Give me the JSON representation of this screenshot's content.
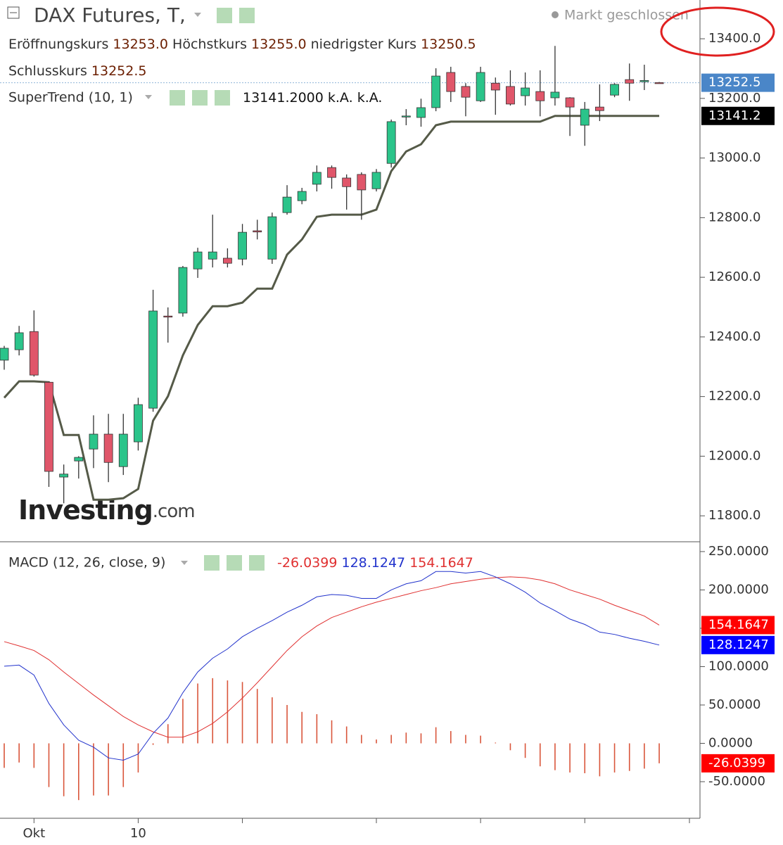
{
  "header": {
    "title": "DAX Futures, T,",
    "status": "Markt geschlossen",
    "open_label": "Eröffnungskurs",
    "open": "13253.0",
    "high_label": "Höchstkurs",
    "high": "13255.0",
    "low_label": "niedrigster Kurs",
    "low": "13250.5",
    "close_label": "Schlusskurs",
    "close": "13252.5",
    "watermark": "Investing",
    "watermark_suffix": ".com"
  },
  "chart_data": [
    {
      "type": "candlestick",
      "legend_label": "SuperTrend (10, 1)",
      "legend_values": [
        "13141.2000",
        "k.A.",
        "k.A."
      ],
      "categories": [
        null,
        null,
        "Okt",
        null,
        null,
        null,
        null,
        null,
        null,
        "10",
        null,
        null,
        null,
        null,
        null,
        null,
        null,
        null,
        null,
        null,
        null,
        null,
        null,
        null,
        null,
        null,
        null,
        null,
        null,
        null,
        null,
        null,
        null,
        null,
        null,
        null,
        null,
        null,
        null,
        null,
        null,
        null,
        null,
        null,
        null
      ],
      "open": [
        12322,
        12357,
        12418,
        12248,
        11930,
        11984,
        12024,
        12074,
        11965,
        12048,
        12161,
        12470,
        12480,
        12628,
        12661,
        12664,
        12661,
        12756,
        12661,
        12817,
        12857,
        12912,
        12968,
        12933,
        12945,
        12897,
        12982,
        13138,
        13136,
        13169,
        13287,
        13240,
        13192,
        13251,
        13240,
        13209,
        13223,
        13202,
        13202,
        13110,
        13171,
        13211,
        13263,
        13256,
        13253.0
      ],
      "high": [
        12370,
        12437,
        12489,
        12250,
        11972,
        12000,
        12137,
        12142,
        12142,
        12196,
        12558,
        12499,
        12638,
        12699,
        12810,
        12697,
        12779,
        12793,
        12817,
        12909,
        12900,
        12975,
        12975,
        12945,
        12952,
        12963,
        13129,
        13164,
        13199,
        13301,
        13306,
        13251,
        13306,
        13270,
        13294,
        13287,
        13294,
        13376,
        13204,
        13188,
        13247,
        13251,
        13317,
        13313,
        13255.0
      ],
      "low": [
        12290,
        12338,
        12267,
        11897,
        11842,
        11925,
        11960,
        11913,
        11937,
        12019,
        12149,
        12381,
        12468,
        12598,
        12633,
        12633,
        12640,
        12727,
        12645,
        12810,
        12845,
        12888,
        12897,
        12827,
        12793,
        12888,
        12968,
        13110,
        13105,
        13157,
        13188,
        13140,
        13188,
        13145,
        13176,
        13176,
        13140,
        13176,
        13074,
        13041,
        13124,
        13204,
        13192,
        13228,
        13250.5
      ],
      "close": [
        12362,
        12414,
        12272,
        11949,
        11940,
        11996,
        12074,
        11979,
        12074,
        12173,
        12487,
        12468,
        12633,
        12685,
        12685,
        12647,
        12751,
        12752,
        12803,
        12869,
        12888,
        12952,
        12935,
        12904,
        12893,
        12952,
        13122,
        13141,
        13169,
        13275,
        13223,
        13204,
        13287,
        13228,
        13181,
        13235,
        13192,
        13221,
        13171,
        13164,
        13159,
        13247,
        13251,
        13260,
        13252.5
      ],
      "up_color": "#2bc48a",
      "down_color": "#e0566a",
      "supertrend": {
        "color": "#555a48",
        "values": [
          12196,
          12251,
          12251,
          12248,
          12071,
          12071,
          11854,
          11854,
          11859,
          11890,
          12119,
          12201,
          12338,
          12440,
          12503,
          12503,
          12515,
          12562,
          12562,
          12676,
          12727,
          12803,
          12810,
          12810,
          12810,
          12827,
          12956,
          13022,
          13046,
          13110,
          13122,
          13122,
          13122,
          13122,
          13122,
          13122,
          13122,
          13141.2,
          13141.2,
          13141.2,
          13141.2,
          13141.2,
          13141.2,
          13141.2,
          13141.2
        ]
      },
      "ylim": [
        11713,
        13530
      ],
      "yticks": [
        {
          "value": 11800,
          "label": "11800.0"
        },
        {
          "value": 12000,
          "label": "12000.0"
        },
        {
          "value": 12200,
          "label": "12200.0"
        },
        {
          "value": 12400,
          "label": "12400.0"
        },
        {
          "value": 12600,
          "label": "12600.0"
        },
        {
          "value": 12800,
          "label": "12800.0"
        },
        {
          "value": 13000,
          "label": "13000.0"
        },
        {
          "value": 13200,
          "label": "13200.0"
        },
        {
          "value": 13400,
          "label": "13400.0"
        }
      ],
      "price_badges": [
        {
          "value": 13252.5,
          "label": "13252.5",
          "color": "#4a86c8"
        },
        {
          "value": 13141.2,
          "label": "13141.2",
          "color": "#000000"
        }
      ]
    },
    {
      "type": "macd",
      "legend_label": "MACD (12, 26, close, 9)",
      "histogram": {
        "color": "#d9553a",
        "value_label": "-26.0399",
        "values": [
          -32,
          -25,
          -32,
          -57,
          -69,
          -74,
          -68,
          -68,
          -57,
          -38,
          -2,
          25,
          58,
          78,
          85,
          82,
          80,
          71,
          60,
          50,
          41,
          38,
          30,
          22,
          11,
          5,
          11,
          14,
          13,
          21,
          16,
          11,
          10,
          1,
          -9,
          -19,
          -30,
          -35,
          -38,
          -39,
          -43,
          -38,
          -36,
          -33,
          -26.0399
        ]
      },
      "macd": {
        "color": "#2233cc",
        "value_label": "128.1247",
        "values": [
          100.5,
          102,
          89,
          52,
          24,
          4,
          -5,
          -19,
          -22,
          -14,
          13,
          33,
          66,
          93,
          111,
          123,
          139,
          150,
          160,
          171,
          180,
          191,
          194,
          193,
          189,
          189,
          200,
          208,
          212,
          224,
          224,
          222,
          224,
          217,
          208,
          197,
          183,
          173,
          162,
          155,
          145,
          142,
          137,
          133,
          128.1247
        ]
      },
      "signal": {
        "color": "#e03030",
        "value_label": "154.1647",
        "values": [
          132.6,
          127,
          121,
          109,
          93,
          78,
          63,
          49,
          35,
          24,
          15,
          8,
          8,
          15,
          26,
          41,
          59,
          79,
          100,
          121,
          139,
          153,
          164,
          171,
          178,
          184,
          189,
          194,
          199,
          203,
          208,
          211,
          214,
          216,
          217,
          216,
          213,
          208,
          200,
          194,
          188,
          180,
          173,
          166,
          154.1647
        ]
      },
      "ylim": [
        -97.7,
        262.8
      ],
      "yticks": [
        {
          "value": -50,
          "label": "-50.0000"
        },
        {
          "value": 0,
          "label": "0.0000"
        },
        {
          "value": 50,
          "label": "50.0000"
        },
        {
          "value": 100,
          "label": "100.0000"
        },
        {
          "value": 150,
          "label": "150.0000"
        },
        {
          "value": 200,
          "label": "200.0000"
        },
        {
          "value": 250,
          "label": "250.0000"
        }
      ]
    }
  ]
}
